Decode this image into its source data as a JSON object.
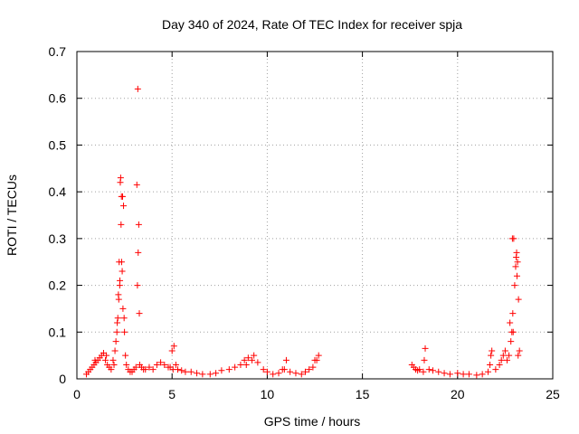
{
  "chart_data": {
    "type": "scatter",
    "title": "Day 340 of 2024, Rate Of TEC Index for receiver spja",
    "xlabel": "GPS time / hours",
    "ylabel": "ROTI / TECUs",
    "xlim": [
      0,
      25
    ],
    "ylim": [
      0,
      0.7
    ],
    "x_ticks": [
      "0",
      "5",
      "10",
      "15",
      "20",
      "25"
    ],
    "y_ticks": [
      "0",
      "0.1",
      "0.2",
      "0.3",
      "0.4",
      "0.5",
      "0.6",
      "0.7"
    ],
    "grid": true,
    "marker": "plus",
    "color": "#ff0000",
    "series": [
      {
        "x": [
          0.5,
          0.6,
          0.7,
          0.8,
          0.9,
          1.0,
          1.1,
          1.2,
          1.3,
          1.4,
          1.5,
          1.6,
          1.7,
          1.8,
          1.9,
          2.0,
          2.05,
          2.1,
          2.15,
          2.2,
          2.25,
          2.3,
          2.35,
          2.4,
          2.45,
          2.5,
          2.55,
          2.6,
          2.7,
          2.8,
          2.9,
          3.0,
          3.1,
          3.15,
          3.2,
          3.25,
          3.3,
          3.4,
          3.5,
          3.6,
          3.8,
          4.0,
          4.2,
          4.4,
          4.6,
          4.8,
          5.0,
          5.1,
          5.2,
          5.3,
          5.5,
          5.7,
          6.0,
          6.3,
          6.6,
          7.0,
          7.3,
          7.6,
          8.0,
          8.3,
          8.6,
          8.8,
          9.0,
          9.2,
          9.5,
          9.8,
          10.0,
          10.3,
          10.6,
          10.9,
          11.0,
          11.2,
          11.5,
          11.8,
          12.0,
          12.2,
          12.4,
          12.6,
          12.7,
          17.6,
          17.7,
          17.8,
          17.9,
          18.0,
          18.2,
          18.3,
          18.5,
          18.7,
          19.0,
          19.3,
          19.6,
          20.0,
          20.3,
          20.6,
          21.0,
          21.3,
          21.6,
          21.7,
          21.8,
          22.0,
          22.2,
          22.3,
          22.4,
          22.5,
          22.6,
          22.7,
          22.8,
          22.85,
          22.9,
          22.95,
          23.0,
          23.05,
          23.1,
          23.15,
          23.2,
          23.25,
          2.22,
          2.28,
          2.32,
          2.38,
          2.26,
          2.34,
          3.22,
          3.18,
          3.28,
          2.42,
          2.48,
          2.12,
          2.18,
          1.95,
          22.75,
          22.88,
          23.08,
          23.12,
          23.18,
          22.92,
          18.25,
          21.75,
          0.95,
          1.55,
          4.9,
          5.05,
          8.9,
          9.3,
          10.8,
          12.5
        ],
        "y": [
          0.01,
          0.015,
          0.02,
          0.025,
          0.03,
          0.035,
          0.04,
          0.045,
          0.05,
          0.055,
          0.04,
          0.03,
          0.025,
          0.02,
          0.04,
          0.06,
          0.08,
          0.1,
          0.13,
          0.17,
          0.2,
          0.43,
          0.25,
          0.39,
          0.37,
          0.1,
          0.05,
          0.03,
          0.02,
          0.015,
          0.015,
          0.02,
          0.025,
          0.415,
          0.62,
          0.33,
          0.03,
          0.025,
          0.02,
          0.02,
          0.025,
          0.02,
          0.03,
          0.035,
          0.03,
          0.025,
          0.06,
          0.07,
          0.03,
          0.02,
          0.018,
          0.015,
          0.015,
          0.012,
          0.01,
          0.01,
          0.012,
          0.018,
          0.02,
          0.025,
          0.03,
          0.04,
          0.045,
          0.04,
          0.035,
          0.02,
          0.015,
          0.01,
          0.012,
          0.02,
          0.04,
          0.015,
          0.012,
          0.01,
          0.015,
          0.02,
          0.025,
          0.04,
          0.05,
          0.03,
          0.025,
          0.02,
          0.018,
          0.02,
          0.015,
          0.065,
          0.02,
          0.018,
          0.015,
          0.012,
          0.01,
          0.012,
          0.01,
          0.01,
          0.008,
          0.01,
          0.015,
          0.03,
          0.06,
          0.02,
          0.03,
          0.04,
          0.05,
          0.06,
          0.04,
          0.05,
          0.08,
          0.1,
          0.14,
          0.3,
          0.2,
          0.24,
          0.27,
          0.25,
          0.17,
          0.06,
          0.25,
          0.42,
          0.33,
          0.23,
          0.21,
          0.39,
          0.27,
          0.2,
          0.14,
          0.15,
          0.13,
          0.12,
          0.18,
          0.03,
          0.12,
          0.3,
          0.26,
          0.22,
          0.05,
          0.1,
          0.04,
          0.05,
          0.04,
          0.05,
          0.025,
          0.02,
          0.03,
          0.05,
          0.02,
          0.04
        ]
      }
    ]
  }
}
